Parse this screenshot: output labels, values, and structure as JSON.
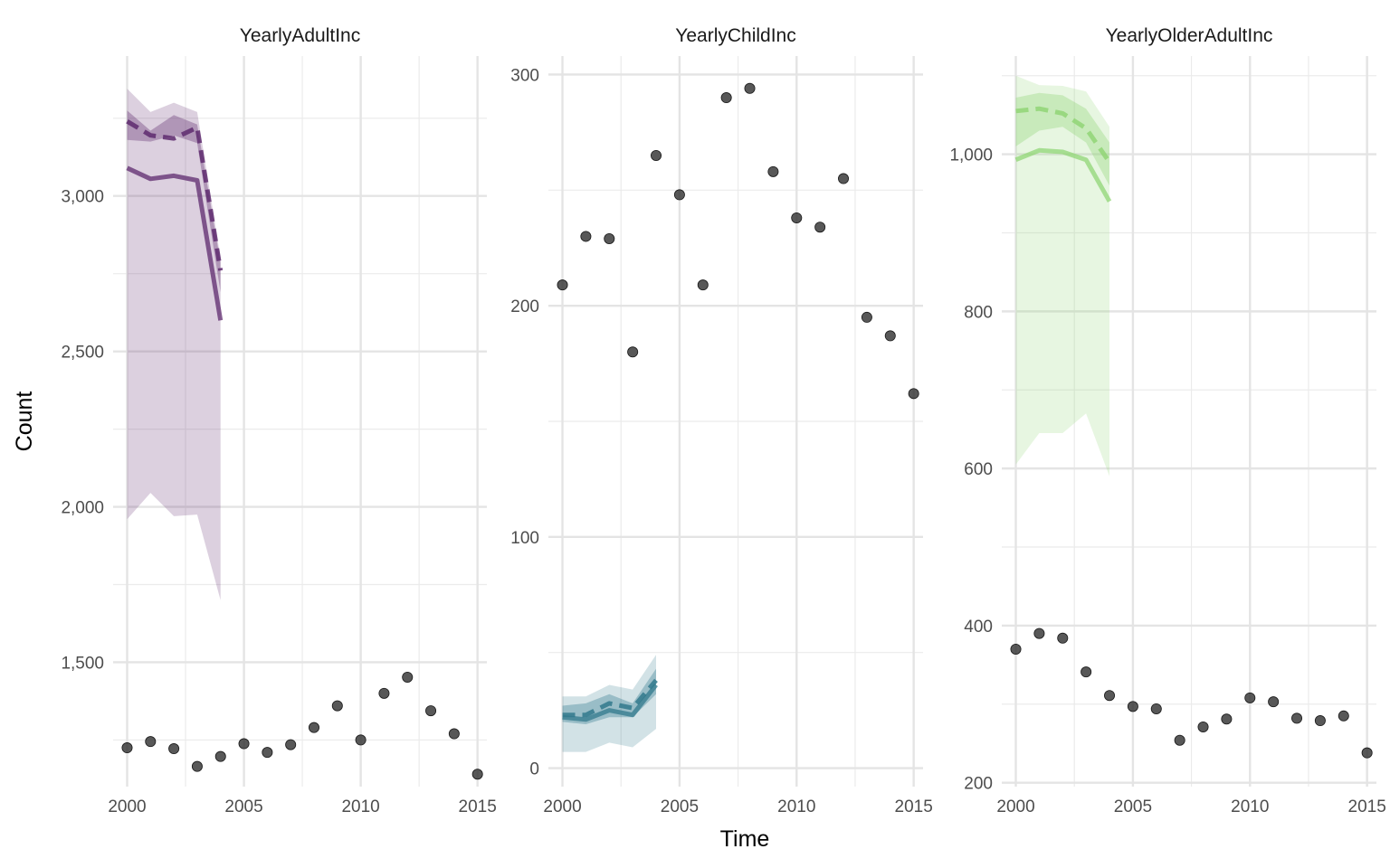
{
  "chart_data": {
    "type": "line",
    "xlabel": "Time",
    "ylabel": "Count",
    "panels": [
      {
        "title": "YearlyAdultInc",
        "color": "#5E2A6E",
        "xlim": [
          1999.4,
          2015.4
        ],
        "ylim": [
          1100,
          3450
        ],
        "xticks": [
          "2000",
          "2005",
          "2010",
          "2015"
        ],
        "yticks": [
          {
            "v": 1500,
            "label": "1,500"
          },
          {
            "v": 2000,
            "label": "2,000"
          },
          {
            "v": 2500,
            "label": "2,500"
          },
          {
            "v": 3000,
            "label": "3,000"
          }
        ],
        "minor_y": [
          1250,
          1750,
          2250,
          2750,
          3250
        ],
        "observed": {
          "x": [
            2000,
            2001,
            2002,
            2003,
            2004,
            2005,
            2006,
            2007,
            2008,
            2009,
            2010,
            2011,
            2012,
            2013,
            2014,
            2015
          ],
          "y": [
            1225,
            1245,
            1222,
            1165,
            1197,
            1238,
            1210,
            1235,
            1290,
            1360,
            1250,
            1400,
            1452,
            1344,
            1270,
            1140
          ]
        },
        "forecast": {
          "x": [
            2000,
            2001,
            2002,
            2003,
            2004
          ],
          "mean": [
            3090,
            3055,
            3065,
            3050,
            2600
          ],
          "median": [
            3240,
            3195,
            3185,
            3220,
            2760
          ],
          "inner_lower": [
            3180,
            3175,
            3195,
            3170,
            2690
          ],
          "inner_upper": [
            3275,
            3210,
            3260,
            3230,
            2785
          ],
          "outer_lower": [
            1960,
            2045,
            1970,
            1975,
            1700
          ],
          "outer_upper": [
            3345,
            3270,
            3300,
            3270,
            2800
          ]
        }
      },
      {
        "title": "YearlyChildInc",
        "color": "#31798C",
        "xlim": [
          1999.4,
          2015.4
        ],
        "ylim": [
          -8,
          308
        ],
        "xticks": [
          "2000",
          "2005",
          "2010",
          "2015"
        ],
        "yticks": [
          {
            "v": 0,
            "label": "0"
          },
          {
            "v": 100,
            "label": "100"
          },
          {
            "v": 200,
            "label": "200"
          },
          {
            "v": 300,
            "label": "300"
          }
        ],
        "minor_y": [
          50,
          150,
          250
        ],
        "observed": {
          "x": [
            2000,
            2001,
            2002,
            2003,
            2004,
            2005,
            2006,
            2007,
            2008,
            2009,
            2010,
            2011,
            2012,
            2013,
            2014,
            2015
          ],
          "y": [
            209,
            230,
            229,
            180,
            265,
            248,
            209,
            290,
            294,
            258,
            238,
            234,
            255,
            195,
            187,
            162
          ]
        },
        "forecast": {
          "x": [
            2000,
            2001,
            2002,
            2003,
            2004
          ],
          "mean": [
            22,
            21,
            25,
            23,
            36
          ],
          "median": [
            23,
            23,
            28,
            26,
            38
          ],
          "inner_lower": [
            20,
            19,
            22,
            22,
            32
          ],
          "inner_upper": [
            27,
            28,
            32,
            28,
            43
          ],
          "outer_lower": [
            7,
            7,
            11,
            9,
            17
          ],
          "outer_upper": [
            31,
            31,
            36,
            34,
            49
          ]
        }
      },
      {
        "title": "YearlyOlderAdultInc",
        "color": "#90D575",
        "xlim": [
          1999.4,
          2015.4
        ],
        "ylim": [
          195,
          1125
        ],
        "xticks": [
          "2000",
          "2005",
          "2010",
          "2015"
        ],
        "yticks": [
          {
            "v": 200,
            "label": "200"
          },
          {
            "v": 400,
            "label": "400"
          },
          {
            "v": 600,
            "label": "600"
          },
          {
            "v": 800,
            "label": "800"
          },
          {
            "v": 1000,
            "label": "1,000"
          }
        ],
        "minor_y": [
          300,
          500,
          700,
          900,
          1100
        ],
        "observed": {
          "x": [
            2000,
            2001,
            2002,
            2003,
            2004,
            2005,
            2006,
            2007,
            2008,
            2009,
            2010,
            2011,
            2012,
            2013,
            2014,
            2015
          ],
          "y": [
            370,
            390,
            384,
            341,
            311,
            297,
            294,
            254,
            271,
            281,
            308,
            303,
            282,
            279,
            285,
            238
          ]
        },
        "forecast": {
          "x": [
            2000,
            2001,
            2002,
            2003,
            2004
          ],
          "mean": [
            993,
            1005,
            1003,
            993,
            940
          ],
          "median": [
            1055,
            1058,
            1052,
            1033,
            990
          ],
          "inner_lower": [
            1010,
            1030,
            1035,
            1015,
            960
          ],
          "inner_upper": [
            1072,
            1078,
            1075,
            1058,
            1015
          ],
          "outer_lower": [
            605,
            645,
            645,
            670,
            590
          ],
          "outer_upper": [
            1100,
            1088,
            1087,
            1080,
            1035
          ]
        }
      }
    ]
  }
}
